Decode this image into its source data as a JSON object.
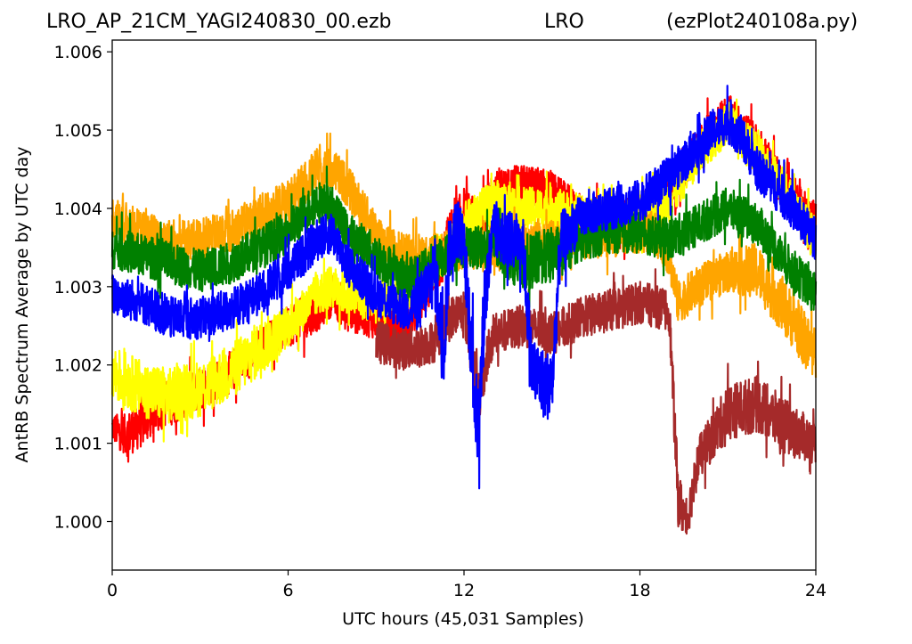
{
  "header": {
    "left": "LRO_AP_21CM_YAGI240830_00.ezb",
    "center": "LRO",
    "right": "(ezPlot240108a.py)"
  },
  "chart_data": {
    "type": "line",
    "xlabel": "UTC hours  (45,031 Samples)",
    "ylabel": "AntRB Spectrum Average by UTC day",
    "xlim": [
      0,
      24
    ],
    "ylim": [
      0.99938,
      1.00615
    ],
    "xticks": [
      0,
      6,
      12,
      18,
      24
    ],
    "xtick_labels": [
      "0",
      "6",
      "12",
      "18",
      "24"
    ],
    "yticks": [
      1.0,
      1.001,
      1.002,
      1.003,
      1.004,
      1.005,
      1.006
    ],
    "ytick_labels": [
      "1.000",
      "1.001",
      "1.002",
      "1.003",
      "1.004",
      "1.005",
      "1.006"
    ],
    "grid": false,
    "legend": "none",
    "series": [
      {
        "color": "#ff0000",
        "x": [
          0,
          0.5,
          1,
          1.5,
          2,
          3,
          4,
          5,
          6,
          7,
          7.5,
          8,
          9,
          10,
          11,
          11.5,
          12,
          12.5,
          13,
          14,
          15,
          16,
          17,
          18,
          19,
          20,
          21,
          22,
          23,
          24
        ],
        "y": [
          1.0012,
          1.0011,
          1.0013,
          1.0015,
          1.0015,
          1.0017,
          1.0019,
          1.0022,
          1.0025,
          1.0027,
          1.0029,
          1.0027,
          1.0026,
          1.0025,
          1.0031,
          1.0036,
          1.004,
          1.0038,
          1.0042,
          1.0043,
          1.0042,
          1.0039,
          1.0038,
          1.0039,
          1.0042,
          1.0048,
          1.0052,
          1.0048,
          1.0042,
          1.0038
        ],
        "spread": [
          0.0002,
          0.0003,
          0.0004,
          0.0004,
          0.0003,
          0.0003,
          0.0003,
          0.0003,
          0.0003,
          0.0003,
          0.0003,
          0.0003,
          0.0003,
          0.0003,
          0.0003,
          0.0004,
          0.0003,
          0.0003,
          0.0003,
          0.0003,
          0.0003,
          0.0003,
          0.0003,
          0.0003,
          0.0003,
          0.0003,
          0.0003,
          0.0003,
          0.0003,
          0.0003
        ]
      },
      {
        "color": "#ffff00",
        "x": [
          0,
          0.5,
          1,
          2,
          3,
          4,
          5,
          6,
          7,
          7.5,
          8,
          9,
          10,
          11,
          12,
          13,
          14,
          15,
          16,
          17,
          18,
          19,
          19.5,
          20,
          21,
          22,
          23,
          24
        ],
        "y": [
          1.0019,
          1.0018,
          1.0017,
          1.0016,
          1.0017,
          1.0019,
          1.0022,
          1.0025,
          1.0029,
          1.003,
          1.0029,
          1.0028,
          1.0029,
          1.0033,
          1.0038,
          1.0041,
          1.004,
          1.004,
          1.0039,
          1.0038,
          1.0039,
          1.0041,
          1.0044,
          1.0047,
          1.0051,
          1.0047,
          1.0042,
          1.0036
        ],
        "spread": [
          0.0004,
          0.0004,
          0.0004,
          0.0004,
          0.0004,
          0.0004,
          0.0004,
          0.0003,
          0.0003,
          0.0003,
          0.0003,
          0.0003,
          0.0003,
          0.0003,
          0.0003,
          0.0003,
          0.0003,
          0.0003,
          0.0003,
          0.0003,
          0.0003,
          0.0003,
          0.0003,
          0.0003,
          0.0003,
          0.0003,
          0.0003,
          0.0003
        ]
      },
      {
        "color": "#a52a2a",
        "x": [
          9,
          10,
          11,
          11.5,
          12,
          12.5,
          13,
          14,
          15,
          16,
          17,
          18,
          19,
          19.3,
          19.6,
          20,
          21,
          22,
          23,
          24
        ],
        "y": [
          1.0023,
          1.0022,
          1.0023,
          1.0026,
          1.0027,
          1.0016,
          1.0024,
          1.0025,
          1.0024,
          1.0026,
          1.0027,
          1.0028,
          1.0027,
          1.0003,
          1.0,
          1.0008,
          1.0014,
          1.0015,
          1.0012,
          1.001
        ],
        "spread": [
          0.0003,
          0.0003,
          0.0003,
          0.0003,
          0.0003,
          0.0004,
          0.0003,
          0.0003,
          0.0003,
          0.0003,
          0.0003,
          0.0003,
          0.0003,
          0.0004,
          0.0003,
          0.0003,
          0.0004,
          0.0004,
          0.0004,
          0.0003
        ]
      },
      {
        "color": "#ffa500",
        "x": [
          0,
          1,
          2,
          3,
          4,
          5,
          6,
          6.5,
          7,
          7.5,
          8,
          8.5,
          9,
          9.5,
          10,
          18.5,
          19,
          19.3,
          20,
          21,
          22,
          23,
          24
        ],
        "y": [
          1.0039,
          1.0037,
          1.0036,
          1.0036,
          1.0037,
          1.0039,
          1.0041,
          1.0043,
          1.0045,
          1.0045,
          1.0043,
          1.004,
          1.0037,
          1.0035,
          1.0034,
          1.0037,
          1.0034,
          1.0028,
          1.003,
          1.0032,
          1.0032,
          1.0027,
          1.0021
        ],
        "spread": [
          0.0003,
          0.0003,
          0.0003,
          0.0003,
          0.0003,
          0.0003,
          0.0003,
          0.0003,
          0.0003,
          0.0003,
          0.0003,
          0.0003,
          0.0003,
          0.0003,
          0.0003,
          0.0003,
          0.0003,
          0.0003,
          0.0003,
          0.0003,
          0.0004,
          0.0004,
          0.0004
        ]
      },
      {
        "color": "#008000",
        "x": [
          0,
          1,
          2,
          3,
          4,
          5,
          6,
          6.5,
          7,
          7.5,
          8,
          9,
          10,
          11,
          12,
          13,
          14,
          15,
          16,
          17,
          18,
          19,
          20,
          21,
          22,
          23,
          24
        ],
        "y": [
          1.0035,
          1.0034,
          1.0033,
          1.0032,
          1.0033,
          1.0035,
          1.0037,
          1.0039,
          1.0041,
          1.004,
          1.0037,
          1.0034,
          1.0031,
          1.0033,
          1.0035,
          1.0035,
          1.0033,
          1.0034,
          1.0036,
          1.0037,
          1.0037,
          1.0036,
          1.0038,
          1.004,
          1.0038,
          1.0033,
          1.0029
        ],
        "spread": [
          0.0003,
          0.0003,
          0.0003,
          0.0003,
          0.0003,
          0.0003,
          0.0003,
          0.0003,
          0.0003,
          0.0003,
          0.0003,
          0.0003,
          0.0003,
          0.0003,
          0.0003,
          0.0003,
          0.0004,
          0.0004,
          0.0003,
          0.0003,
          0.0003,
          0.0003,
          0.0003,
          0.0003,
          0.0003,
          0.0003,
          0.0003
        ]
      },
      {
        "color": "#0000ff",
        "x": [
          0,
          1,
          2,
          3,
          4,
          5,
          6,
          6.5,
          7,
          7.5,
          8,
          9,
          10,
          10.5,
          11,
          11.3,
          11.5,
          11.8,
          12,
          12.2,
          12.4,
          12.5,
          12.7,
          13,
          13.5,
          14,
          14.3,
          14.6,
          15,
          15.3,
          15.6,
          16,
          17,
          18,
          19,
          20,
          20.5,
          21,
          21.5,
          22,
          23,
          24
        ],
        "y": [
          1.0029,
          1.0028,
          1.0026,
          1.0026,
          1.0027,
          1.0029,
          1.0032,
          1.0034,
          1.0036,
          1.0037,
          1.0033,
          1.0029,
          1.0027,
          1.0028,
          1.0032,
          1.0022,
          1.0035,
          1.0038,
          1.0035,
          1.0025,
          1.0014,
          1.0012,
          1.0028,
          1.0037,
          1.0036,
          1.0036,
          1.002,
          1.0018,
          1.0017,
          1.0036,
          1.0037,
          1.0039,
          1.004,
          1.0041,
          1.0044,
          1.0048,
          1.005,
          1.0051,
          1.0049,
          1.0045,
          1.0041,
          1.0036
        ],
        "spread": [
          0.0003,
          0.0003,
          0.0003,
          0.0003,
          0.0003,
          0.0003,
          0.0003,
          0.0003,
          0.0003,
          0.0003,
          0.0003,
          0.0003,
          0.0003,
          0.0004,
          0.0005,
          0.0006,
          0.0005,
          0.0004,
          0.0004,
          0.0006,
          0.0006,
          0.0006,
          0.0006,
          0.0004,
          0.0004,
          0.0004,
          0.0005,
          0.0005,
          0.0005,
          0.0004,
          0.0004,
          0.0003,
          0.0003,
          0.0003,
          0.0003,
          0.0003,
          0.0003,
          0.0003,
          0.0003,
          0.0003,
          0.0003,
          0.0003
        ]
      }
    ]
  }
}
